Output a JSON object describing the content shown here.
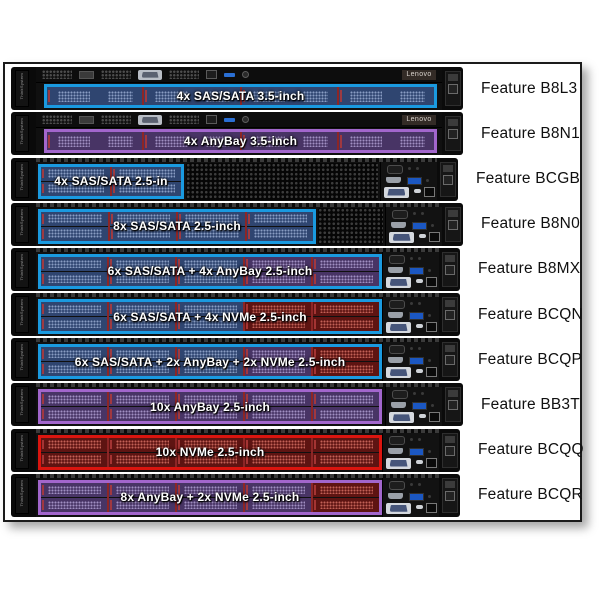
{
  "frame": {
    "border_color": "#1b1b1b",
    "background": "#ffffff"
  },
  "branding": {
    "left_ear_label": "ThinkSystem",
    "logo_label": "Lenovo"
  },
  "palette": {
    "sas_border": "#1a9ae0",
    "sas_fill": "#2f4570",
    "sas_dot": "#93a7cd",
    "anybay_border": "#a266cc",
    "anybay_fill": "#483465",
    "anybay_dot": "#ab99cd",
    "nvme_border": "#da150f",
    "nvme_fill": "#5e1412",
    "nvme_dot": "#cd6a5e"
  },
  "rows": [
    {
      "feature": "Feature B8L3",
      "label": "4x SAS/SATA 3.5-inch",
      "form": "3.5",
      "outline": "sas",
      "segments": [
        {
          "type": "sas",
          "cols": 4
        }
      ]
    },
    {
      "feature": "Feature B8N1",
      "label": "4x AnyBay 3.5-inch",
      "form": "3.5",
      "outline": "anybay",
      "segments": [
        {
          "type": "anybay",
          "cols": 4
        }
      ]
    },
    {
      "feature": "Feature BCGB",
      "label": "4x SAS/SATA 2.5-in",
      "form": "2.5",
      "outline": "sas",
      "segments": [
        {
          "type": "sas",
          "cols": 2
        }
      ]
    },
    {
      "feature": "Feature B8N0",
      "label": "8x SAS/SATA 2.5-inch",
      "form": "2.5",
      "outline": "sas",
      "segments": [
        {
          "type": "sas",
          "cols": 4
        }
      ]
    },
    {
      "feature": "Feature B8MX",
      "label": "6x SAS/SATA + 4x AnyBay 2.5-inch",
      "form": "2.5",
      "outline": "sas",
      "segments": [
        {
          "type": "sas",
          "cols": 3
        },
        {
          "type": "anybay",
          "cols": 2
        }
      ]
    },
    {
      "feature": "Feature BCQN",
      "label": "6x SAS/SATA + 4x NVMe 2.5-inch",
      "form": "2.5",
      "outline": "sas",
      "segments": [
        {
          "type": "sas",
          "cols": 3
        },
        {
          "type": "nvme",
          "cols": 2
        }
      ]
    },
    {
      "feature": "Feature BCQP",
      "label": "6x SAS/SATA + 2x AnyBay + 2x NVMe 2.5-inch",
      "form": "2.5",
      "outline": "sas",
      "segments": [
        {
          "type": "sas",
          "cols": 3
        },
        {
          "type": "anybay",
          "cols": 1
        },
        {
          "type": "nvme",
          "cols": 1
        }
      ]
    },
    {
      "feature": "Feature BB3T",
      "label": "10x AnyBay 2.5-inch",
      "form": "2.5",
      "outline": "anybay",
      "segments": [
        {
          "type": "anybay",
          "cols": 5
        }
      ]
    },
    {
      "feature": "Feature BCQQ",
      "label": "10x NVMe 2.5-inch",
      "form": "2.5",
      "outline": "nvme",
      "segments": [
        {
          "type": "nvme",
          "cols": 5
        }
      ]
    },
    {
      "feature": "Feature BCQR",
      "label": "8x AnyBay + 2x NVMe 2.5-inch",
      "form": "2.5",
      "outline": "anybay",
      "segments": [
        {
          "type": "anybay",
          "cols": 4
        },
        {
          "type": "nvme",
          "cols": 1
        }
      ]
    }
  ]
}
